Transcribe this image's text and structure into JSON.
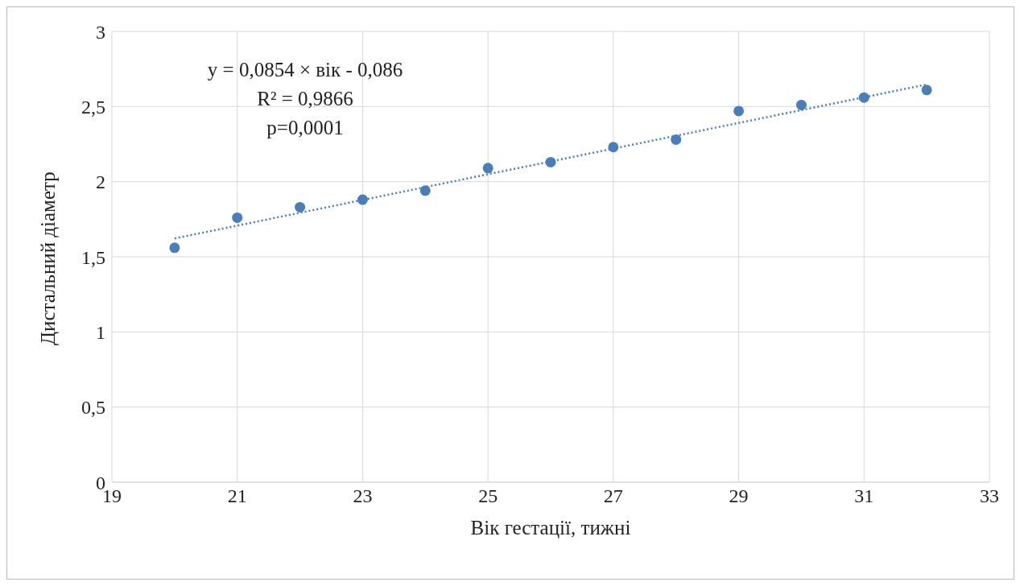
{
  "chart_data": {
    "type": "scatter",
    "xlabel": "Вік гестації, тижні",
    "ylabel": "Дистальний діаметр",
    "x": [
      20,
      21,
      22,
      23,
      24,
      25,
      26,
      27,
      28,
      29,
      30,
      31,
      32
    ],
    "series": [
      {
        "color": "#4a7ebb",
        "marker": "circle",
        "values": [
          1.56,
          1.76,
          1.83,
          1.88,
          1.94,
          2.09,
          2.13,
          2.23,
          2.28,
          2.47,
          2.51,
          2.56,
          2.61
        ]
      },
      {
        "type": "line",
        "color": "#4a7ebb",
        "line_style": "dotted",
        "x": [
          20,
          32
        ],
        "values": [
          1.622,
          2.647
        ]
      }
    ],
    "annotations": [
      "y = 0,0854 × вік - 0,086",
      "R² = 0,9866",
      "p=0,0001"
    ],
    "xlim": [
      19,
      33
    ],
    "xticks": [
      19,
      21,
      23,
      25,
      27,
      29,
      31,
      33
    ],
    "ylim": [
      0,
      3
    ],
    "yticks": [
      0,
      {
        "value": 0.5,
        "label": "0,5"
      },
      1,
      {
        "value": 1.5,
        "label": "1,5"
      },
      2,
      {
        "value": 2.5,
        "label": "2,5"
      },
      3
    ],
    "grid": true,
    "legend": false
  }
}
